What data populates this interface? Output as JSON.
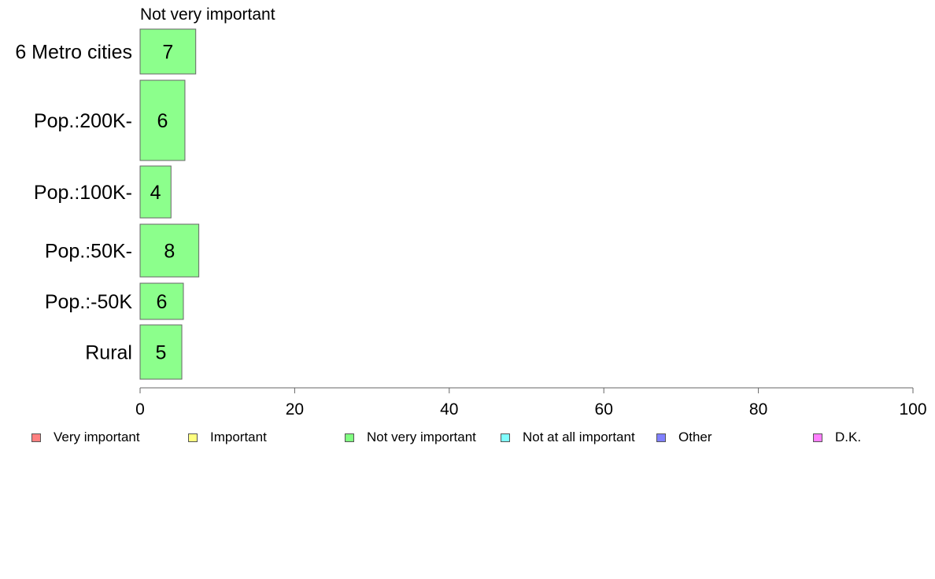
{
  "chart_data": {
    "type": "bar",
    "orientation": "horizontal",
    "title": "Not very important",
    "categories": [
      "6 Metro cities",
      "Pop.:200K-",
      "Pop.:100K-",
      "Pop.:50K-",
      "Pop.:-50K",
      "Rural"
    ],
    "series": [
      {
        "name": "Not very important",
        "values": [
          7.2,
          5.8,
          4.0,
          7.6,
          5.6,
          5.4
        ],
        "labels": [
          "7",
          "6",
          "4",
          "8",
          "6",
          "5"
        ],
        "color": "#8cff8c"
      }
    ],
    "xlim": [
      0,
      100
    ],
    "xticks": [
      "0",
      "20",
      "40",
      "60",
      "80",
      "100"
    ],
    "grid": false,
    "legend_position": "bottom",
    "legend": [
      {
        "name": "Very important",
        "color": "#ff8080"
      },
      {
        "name": "Important",
        "color": "#ffff80"
      },
      {
        "name": "Not very important",
        "color": "#80ff80"
      },
      {
        "name": "Not at all important",
        "color": "#80ffff"
      },
      {
        "name": "Other",
        "color": "#8080ff"
      },
      {
        "name": "D.K.",
        "color": "#ff80ff"
      }
    ]
  }
}
